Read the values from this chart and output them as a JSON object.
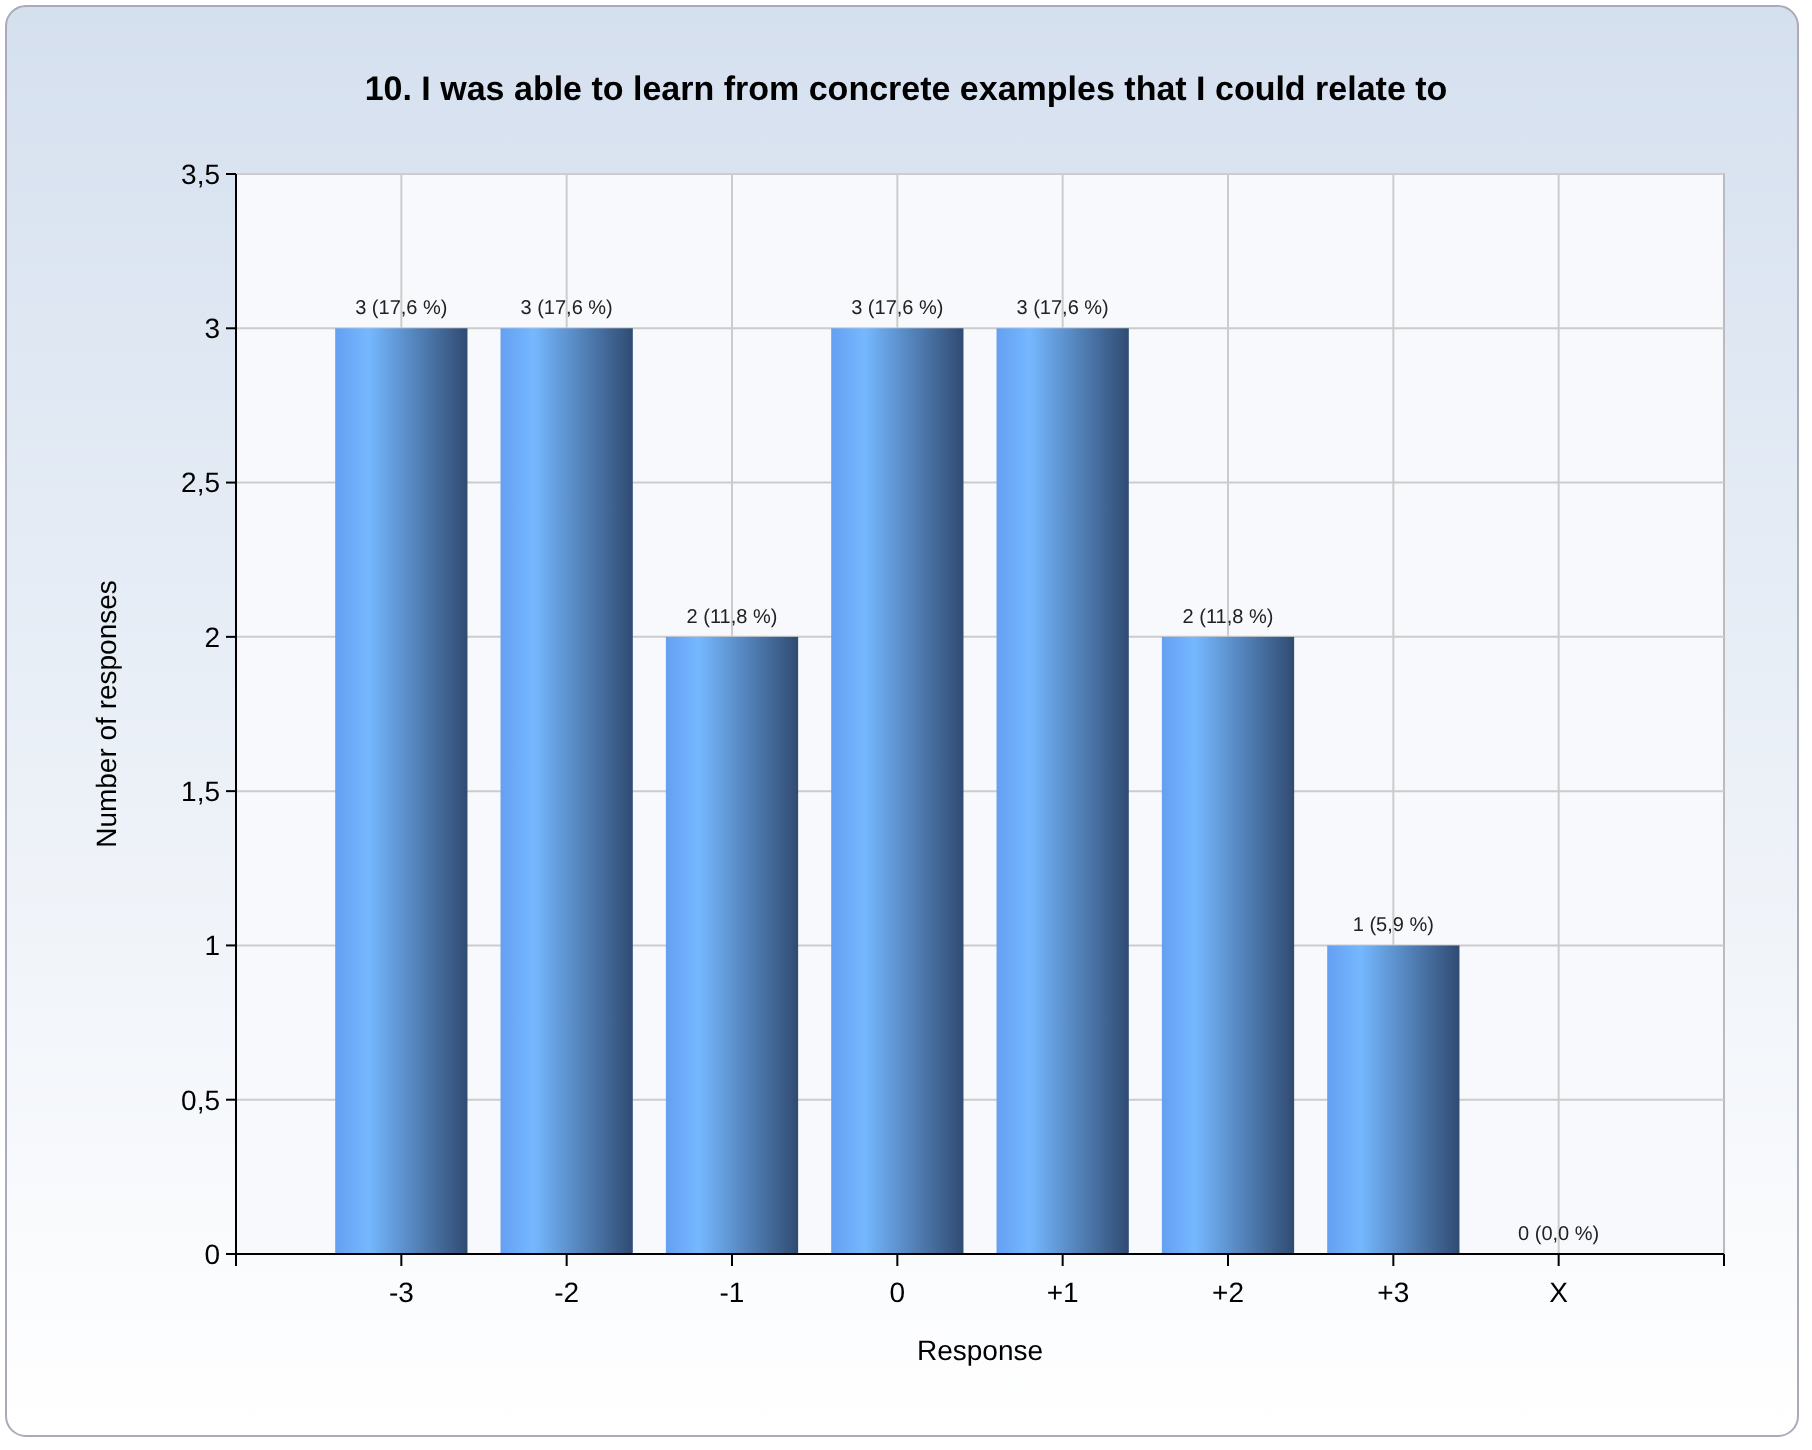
{
  "chart_data": {
    "type": "bar",
    "title": "10. I was able to learn from concrete examples that I could relate to",
    "xlabel": "Response",
    "ylabel": "Number of responses",
    "categories": [
      "-3",
      "-2",
      "-1",
      "0",
      "+1",
      "+2",
      "+3",
      "X"
    ],
    "values": [
      3,
      3,
      2,
      3,
      3,
      2,
      1,
      0
    ],
    "value_labels": [
      "3 (17,6 %)",
      "3 (17,6 %)",
      "2 (11,8 %)",
      "3 (17,6 %)",
      "3 (17,6 %)",
      "2 (11,8 %)",
      "1 (5,9 %)",
      "0 (0,0 %)"
    ],
    "color": "#5b8fd9",
    "ylim": [
      0,
      3.5
    ],
    "yticks": [
      0,
      {
        "value": 0.5,
        "label": "0,5"
      },
      1,
      {
        "value": 1.5,
        "label": "1,5"
      },
      2,
      {
        "value": 2.5,
        "label": "2,5"
      },
      3,
      {
        "value": 3.5,
        "label": "3,5"
      }
    ],
    "grid": true
  }
}
